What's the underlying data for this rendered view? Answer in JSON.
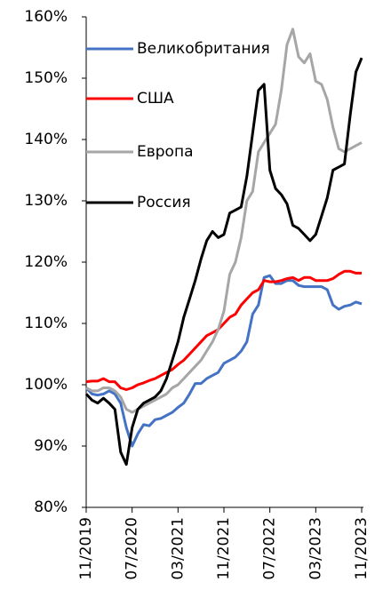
{
  "chart_data": {
    "type": "line",
    "categories": [
      "11/2019",
      null,
      null,
      null,
      null,
      null,
      null,
      null,
      "07/2020",
      null,
      null,
      null,
      null,
      null,
      null,
      null,
      "03/2021",
      null,
      null,
      null,
      null,
      null,
      null,
      null,
      "11/2021",
      null,
      null,
      null,
      null,
      null,
      null,
      null,
      "07/2022",
      null,
      null,
      null,
      null,
      null,
      null,
      null,
      "03/2023",
      null,
      null,
      null,
      null,
      null,
      null,
      null,
      "11/2023"
    ],
    "series": [
      {
        "name": "Великобритания",
        "color": "#4472c4",
        "values": [
          99.5,
          98.5,
          98.3,
          98.5,
          99,
          98.5,
          97,
          93,
          90,
          92,
          93.5,
          93.3,
          94.3,
          94.5,
          95,
          95.5,
          96.3,
          97,
          98.5,
          100.2,
          100.2,
          101,
          101.5,
          102,
          103.5,
          104,
          104.5,
          105.5,
          107,
          111.5,
          113,
          117.5,
          117.8,
          116.5,
          116.5,
          117,
          117,
          116.2,
          116,
          116,
          116,
          116,
          115.5,
          113,
          112.3,
          112.8,
          113,
          113.5,
          113.2
        ]
      },
      {
        "name": "США",
        "color": "#ff0000",
        "values": [
          100.5,
          100.6,
          100.6,
          101,
          100.5,
          100.5,
          99.5,
          99.2,
          99.5,
          100,
          100.3,
          100.7,
          101,
          101.5,
          102,
          102.5,
          103.3,
          104,
          105,
          106,
          107,
          108,
          108.5,
          109,
          110,
          111,
          111.5,
          113,
          114,
          115,
          115.5,
          117,
          116.8,
          116.8,
          117,
          117.3,
          117.5,
          117,
          117.5,
          117.5,
          117,
          117,
          117,
          117.3,
          118,
          118.5,
          118.5,
          118.2,
          118.2
        ]
      },
      {
        "name": "Европа",
        "color": "#a6a6a6",
        "values": [
          99.5,
          99,
          99,
          99.5,
          99.5,
          99,
          98,
          96,
          95.5,
          96,
          96.5,
          97,
          97.5,
          98,
          98.5,
          99.5,
          100,
          101,
          102,
          103,
          104,
          105.5,
          107,
          109,
          112,
          118,
          120,
          124,
          130,
          131.5,
          138,
          139.5,
          141,
          142.5,
          148,
          155.5,
          158,
          153.5,
          152.5,
          154,
          149.5,
          149,
          146.5,
          142,
          138.5,
          138,
          138.5,
          139,
          139.5
        ]
      },
      {
        "name": "Россия",
        "color": "#000000",
        "values": [
          98.5,
          97.5,
          97,
          97.8,
          97,
          96,
          89,
          87,
          93,
          96,
          97,
          97.5,
          98,
          99,
          101,
          104,
          107,
          111,
          114,
          117,
          120.5,
          123.5,
          125,
          124,
          124.5,
          128,
          128.5,
          129,
          134,
          141,
          148,
          149,
          135,
          132,
          131,
          129.5,
          126,
          125.5,
          124.5,
          123.5,
          124.5,
          127.5,
          130.5,
          135,
          135.5,
          136,
          144,
          151,
          153.3
        ]
      }
    ],
    "ylim": [
      80,
      160
    ],
    "yticks": [
      {
        "value": 80,
        "label": "80%"
      },
      {
        "value": 90,
        "label": "90%"
      },
      {
        "value": 100,
        "label": "100%"
      },
      {
        "value": 110,
        "label": "110%"
      },
      {
        "value": 120,
        "label": "120%"
      },
      {
        "value": 130,
        "label": "130%"
      },
      {
        "value": 140,
        "label": "140%"
      },
      {
        "value": 150,
        "label": "150%"
      },
      {
        "value": 160,
        "label": "160%"
      }
    ],
    "legend": "upper left"
  }
}
